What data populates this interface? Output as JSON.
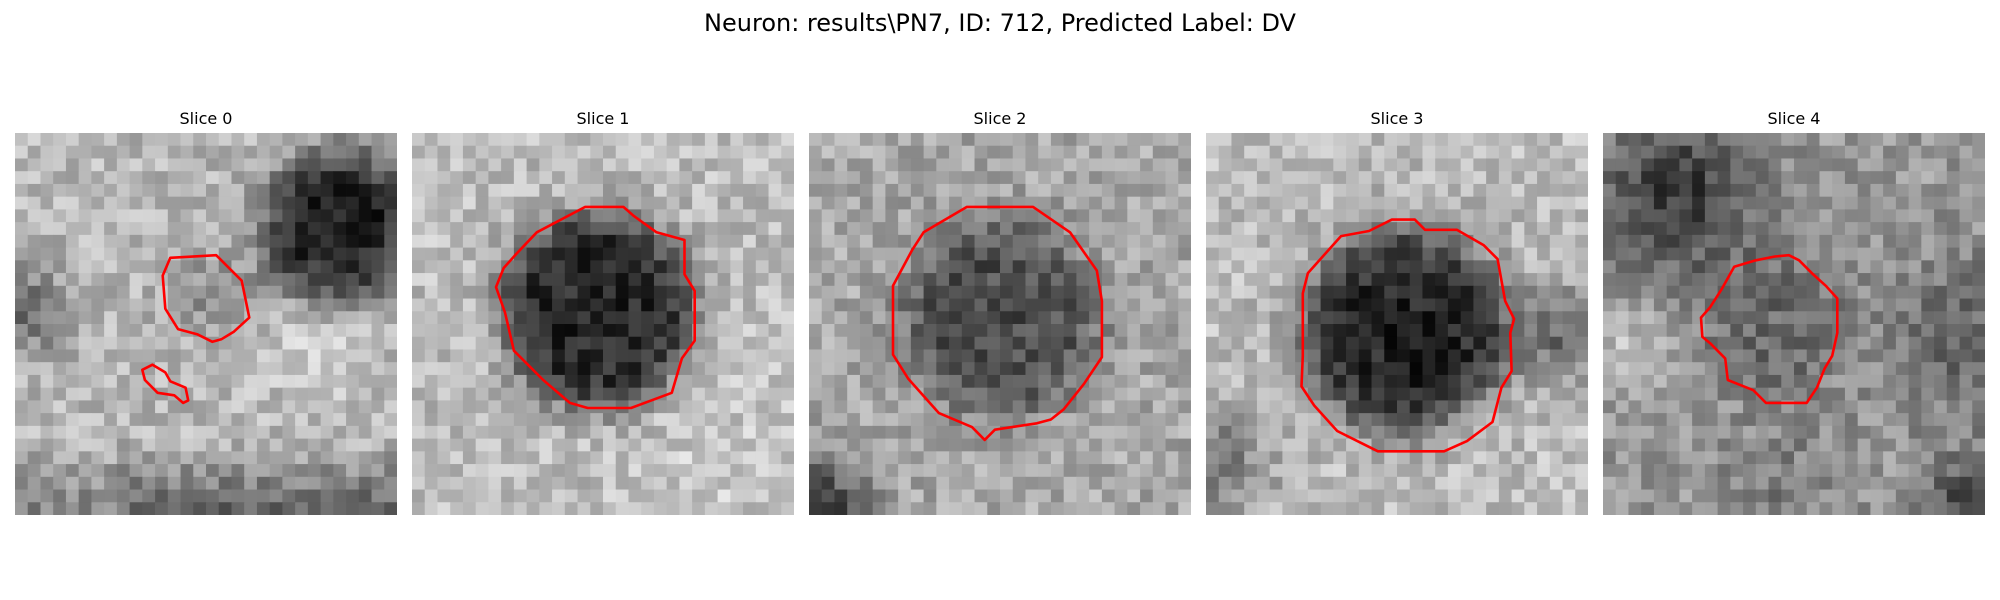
{
  "figure": {
    "title": "Neuron: results\\PN7, ID: 712, Predicted Label: DV"
  },
  "colors": {
    "contour": "#ff0000",
    "background": "#ffffff"
  },
  "panels": [
    {
      "title": "Slice 0"
    },
    {
      "title": "Slice 1"
    },
    {
      "title": "Slice 2"
    },
    {
      "title": "Slice 3"
    },
    {
      "title": "Slice 4"
    }
  ]
}
